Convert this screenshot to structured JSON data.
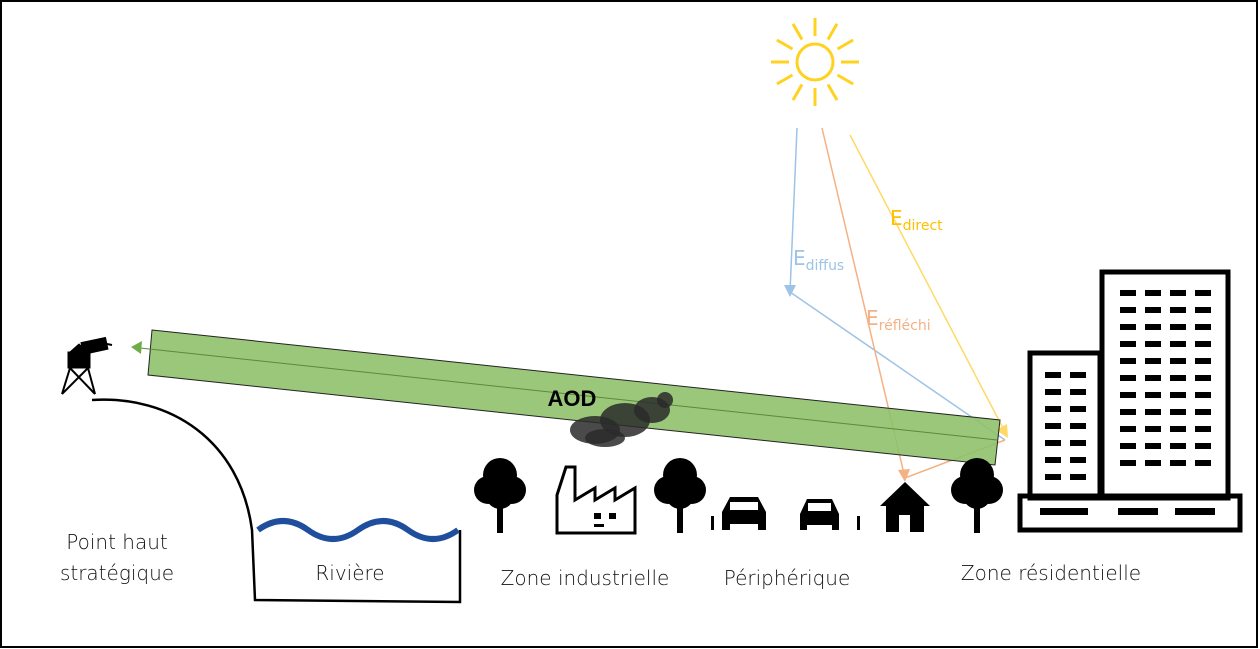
{
  "beam_label": "AOD",
  "irradiance": [
    {
      "symbol": "E",
      "subscript": "diffus"
    },
    {
      "symbol": "E",
      "subscript": "réfléchi"
    },
    {
      "symbol": "E",
      "subscript": "direct"
    }
  ],
  "zones": {
    "high_point": [
      "Point haut",
      "stratégique"
    ],
    "river": "Rivière",
    "industrial": "Zone industrielle",
    "ring_road": "Périphérique",
    "residential": "Zone résidentielle"
  }
}
